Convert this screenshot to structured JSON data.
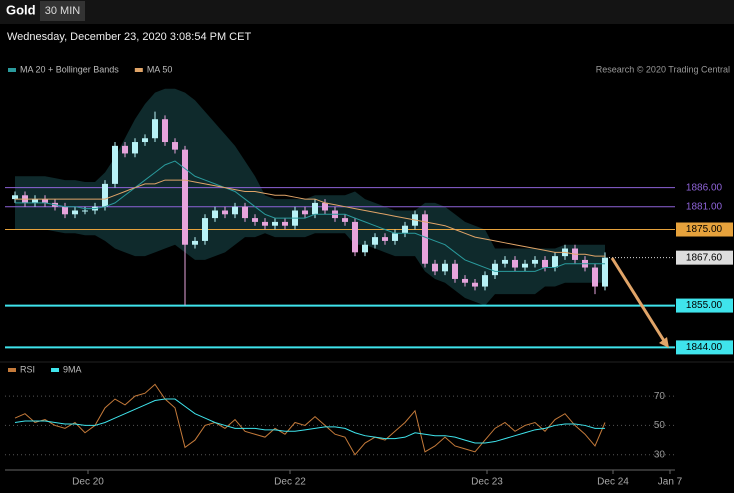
{
  "header": {
    "symbol": "Gold",
    "interval": "30 MIN",
    "timestamp": "Wednesday, December 23, 2020 3:08:54 PM CET",
    "credit": "Research © 2020 Trading Central"
  },
  "chart_data": [
    {
      "type": "candlestick",
      "up_color": "#b8f2f6",
      "down_color": "#e6a4dc",
      "band_color": "#0f2a2c",
      "xlim": [
        -1,
        66
      ],
      "ylim": [
        1842,
        1913
      ],
      "x": [
        0,
        1,
        2,
        3,
        4,
        5,
        6,
        7,
        8,
        9,
        10,
        11,
        12,
        13,
        14,
        15,
        16,
        17,
        18,
        19,
        20,
        21,
        22,
        23,
        24,
        25,
        26,
        27,
        28,
        29,
        30,
        31,
        32,
        33,
        34,
        35,
        36,
        37,
        38,
        39,
        40,
        41,
        42,
        43,
        44,
        45,
        46,
        47,
        48,
        49,
        50,
        51,
        52,
        53,
        54,
        55,
        56,
        57,
        58,
        59
      ],
      "open": [
        1883,
        1884,
        1882,
        1883,
        1882,
        1881,
        1879,
        1880,
        1880,
        1881,
        1887,
        1897,
        1895,
        1898,
        1899,
        1904,
        1898,
        1896,
        1871,
        1872,
        1878,
        1880,
        1879,
        1881,
        1878,
        1877,
        1876,
        1877,
        1876,
        1880,
        1879,
        1882,
        1880,
        1878,
        1877,
        1869,
        1871,
        1873,
        1872,
        1874,
        1876,
        1879,
        1866,
        1864,
        1866,
        1862,
        1861,
        1860,
        1863,
        1866,
        1867,
        1865,
        1866,
        1867,
        1865,
        1868,
        1870,
        1867,
        1865,
        1860
      ],
      "high": [
        1885,
        1885,
        1884,
        1884,
        1883,
        1882,
        1881,
        1881,
        1882,
        1888,
        1898,
        1898,
        1899,
        1900,
        1906,
        1905,
        1899,
        1897,
        1873,
        1879,
        1881,
        1881,
        1882,
        1882,
        1879,
        1878,
        1878,
        1878,
        1881,
        1881,
        1883,
        1883,
        1881,
        1879,
        1878,
        1872,
        1874,
        1874,
        1875,
        1877,
        1880,
        1880,
        1867,
        1867,
        1867,
        1863,
        1862,
        1864,
        1867,
        1868,
        1868,
        1867,
        1868,
        1868,
        1869,
        1871,
        1871,
        1868,
        1866,
        1869
      ],
      "low": [
        1882,
        1881,
        1881,
        1881,
        1880,
        1878,
        1878,
        1879,
        1879,
        1880,
        1886,
        1894,
        1894,
        1897,
        1898,
        1897,
        1895,
        1855,
        1870,
        1871,
        1877,
        1878,
        1878,
        1877,
        1876,
        1875,
        1875,
        1875,
        1875,
        1878,
        1878,
        1879,
        1877,
        1876,
        1868,
        1868,
        1870,
        1871,
        1871,
        1873,
        1875,
        1865,
        1863,
        1863,
        1861,
        1860,
        1859,
        1859,
        1862,
        1865,
        1864,
        1864,
        1865,
        1864,
        1864,
        1867,
        1866,
        1864,
        1858,
        1859
      ],
      "close": [
        1884,
        1882,
        1883,
        1882,
        1881,
        1879,
        1880,
        1880,
        1881,
        1887,
        1897,
        1895,
        1898,
        1899,
        1904,
        1898,
        1896,
        1871,
        1872,
        1878,
        1880,
        1879,
        1881,
        1878,
        1877,
        1876,
        1877,
        1876,
        1880,
        1879,
        1882,
        1880,
        1878,
        1877,
        1869,
        1871,
        1873,
        1872,
        1874,
        1876,
        1879,
        1866,
        1864,
        1866,
        1862,
        1861,
        1860,
        1863,
        1866,
        1867,
        1865,
        1866,
        1867,
        1865,
        1868,
        1870,
        1867,
        1865,
        1860,
        1867.6
      ],
      "series": [
        {
          "name": "MA 20 + Bollinger Bands",
          "color": "#2a9a9c",
          "values": [
            1882,
            1882,
            1882,
            1882,
            1881.5,
            1881,
            1881,
            1880.5,
            1880.5,
            1881,
            1882,
            1884,
            1886,
            1888,
            1890,
            1892,
            1893,
            1891,
            1889,
            1888,
            1887,
            1886,
            1885,
            1883,
            1881,
            1879,
            1878,
            1878,
            1878,
            1878,
            1879,
            1879,
            1879,
            1879,
            1878,
            1877,
            1876,
            1875,
            1874,
            1874,
            1874,
            1873,
            1872,
            1871,
            1869,
            1867,
            1866,
            1865,
            1864,
            1864,
            1864,
            1864,
            1864,
            1865,
            1865,
            1866,
            1866,
            1866,
            1866,
            1866
          ],
          "upper": [
            1889,
            1889,
            1889,
            1889,
            1888.5,
            1888,
            1888,
            1887.5,
            1887.5,
            1890,
            1894,
            1899,
            1904,
            1908,
            1911,
            1912,
            1912,
            1911,
            1909,
            1906,
            1903,
            1900,
            1897,
            1893,
            1889,
            1884,
            1883,
            1883,
            1883,
            1883,
            1884,
            1884,
            1884,
            1884,
            1885,
            1883,
            1882,
            1881,
            1880,
            1880,
            1880,
            1882,
            1882,
            1881,
            1879,
            1877,
            1876,
            1875,
            1870,
            1870,
            1870,
            1870,
            1870,
            1870,
            1870,
            1871,
            1871,
            1871,
            1871,
            1871
          ],
          "lower": [
            1875,
            1875,
            1875,
            1875,
            1874.5,
            1874,
            1874,
            1873.5,
            1873.5,
            1872,
            1870,
            1869,
            1868,
            1868,
            1869,
            1870,
            1871,
            1869,
            1867,
            1867,
            1868,
            1869,
            1871,
            1873,
            1873,
            1874,
            1873,
            1873,
            1873,
            1873,
            1874,
            1874,
            1874,
            1874,
            1871,
            1871,
            1870,
            1869,
            1868,
            1868,
            1868,
            1864,
            1862,
            1861,
            1859,
            1857,
            1856,
            1855,
            1858,
            1858,
            1858,
            1858,
            1858,
            1860,
            1860,
            1861,
            1861,
            1861,
            1861,
            1861
          ]
        },
        {
          "name": "MA 50",
          "color": "#e0a468",
          "values": [
            1883,
            1883,
            1883,
            1883,
            1883,
            1883,
            1883,
            1883,
            1883,
            1883,
            1884,
            1885,
            1886,
            1887,
            1887,
            1888,
            1888,
            1888,
            1887.5,
            1887,
            1886.5,
            1886,
            1885.5,
            1885,
            1885,
            1884.5,
            1884,
            1884,
            1883.5,
            1883,
            1883,
            1882,
            1881.5,
            1881,
            1880.5,
            1880,
            1879.5,
            1879,
            1878.5,
            1878,
            1877.5,
            1877,
            1876.5,
            1876,
            1875,
            1874,
            1873,
            1872.5,
            1872,
            1871.5,
            1871,
            1870.5,
            1870,
            1869.5,
            1869,
            1869,
            1868.5,
            1868.5,
            1868,
            1868
          ]
        }
      ],
      "levels": [
        {
          "value": 1886,
          "label": "1886.00",
          "color": "#8e63d8",
          "style": "solid"
        },
        {
          "value": 1881,
          "label": "1881.00",
          "color": "#8e63d8",
          "style": "solid"
        },
        {
          "value": 1875,
          "label": "1875.00",
          "color": "#e6a23c",
          "style": "solid"
        },
        {
          "value": 1867.6,
          "label": "1867.60",
          "color": "#dddddd",
          "style": "dotted"
        },
        {
          "value": 1855,
          "label": "1855.00",
          "color": "#3fe4ec",
          "style": "thick"
        },
        {
          "value": 1844,
          "label": "1844.00",
          "color": "#3fe4ec",
          "style": "thick"
        }
      ]
    },
    {
      "type": "line",
      "xlim": [
        -1,
        66
      ],
      "ylim": [
        23,
        81
      ],
      "yticks": [
        30,
        50,
        70
      ],
      "xticks": [
        {
          "value": 7.3,
          "label": "Dec 20"
        },
        {
          "value": 27.5,
          "label": "Dec 22"
        },
        {
          "value": 47.2,
          "label": "Dec 23"
        },
        {
          "value": 59.8,
          "label": "Dec 24"
        },
        {
          "value": 65.5,
          "label": "Jan 7"
        }
      ],
      "x": [
        0,
        1,
        2,
        3,
        4,
        5,
        6,
        7,
        8,
        9,
        10,
        11,
        12,
        13,
        14,
        15,
        16,
        17,
        18,
        19,
        20,
        21,
        22,
        23,
        24,
        25,
        26,
        27,
        28,
        29,
        30,
        31,
        32,
        33,
        34,
        35,
        36,
        37,
        38,
        39,
        40,
        41,
        42,
        43,
        44,
        45,
        46,
        47,
        48,
        49,
        50,
        51,
        52,
        53,
        54,
        55,
        56,
        57,
        58,
        59
      ],
      "series": [
        {
          "name": "RSI",
          "color": "#c47a3a",
          "values": [
            55,
            58,
            52,
            54,
            50,
            48,
            52,
            45,
            50,
            62,
            68,
            64,
            70,
            72,
            78,
            68,
            62,
            35,
            40,
            50,
            52,
            48,
            54,
            46,
            44,
            42,
            48,
            44,
            52,
            50,
            56,
            50,
            44,
            42,
            30,
            38,
            42,
            40,
            46,
            52,
            60,
            32,
            36,
            42,
            36,
            34,
            32,
            40,
            48,
            52,
            46,
            50,
            52,
            46,
            54,
            58,
            50,
            44,
            36,
            52
          ]
        },
        {
          "name": "9MA",
          "color": "#3fe4ec",
          "values": [
            52,
            53,
            53,
            53,
            52,
            51,
            51,
            50,
            50,
            52,
            55,
            58,
            61,
            64,
            67,
            68,
            68,
            63,
            58,
            55,
            52,
            50,
            48,
            48,
            48,
            47,
            47,
            46,
            46,
            47,
            48,
            49,
            49,
            48,
            45,
            43,
            42,
            41,
            41,
            42,
            45,
            44,
            43,
            43,
            42,
            40,
            38,
            38,
            39,
            41,
            43,
            45,
            47,
            48,
            50,
            51,
            51,
            50,
            48,
            48
          ]
        }
      ]
    }
  ]
}
